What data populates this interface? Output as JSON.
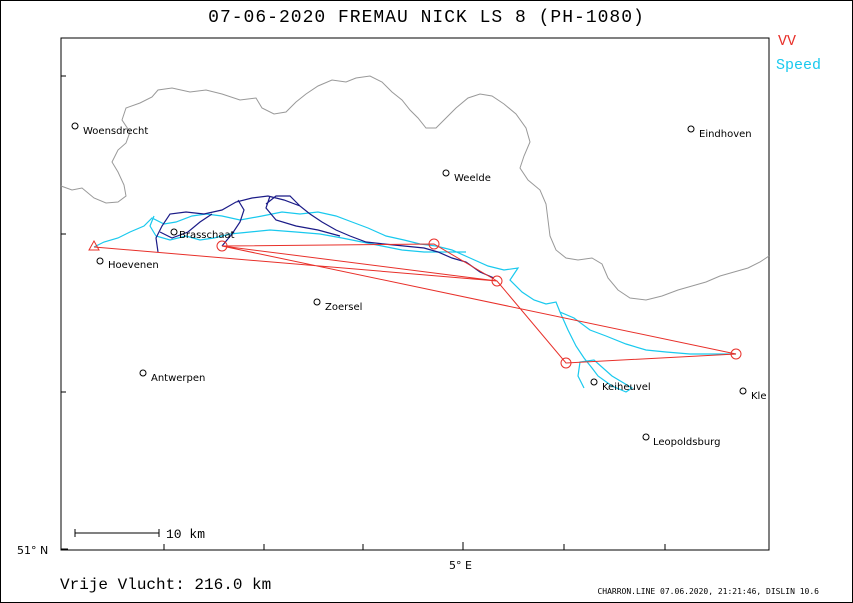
{
  "title": "07-06-2020    FREMAU NICK    LS 8 (PH-1080)",
  "legend": {
    "vv_label": "VV",
    "speed_label": "Speed",
    "vv_color": "#e8302a",
    "speed_color": "#19c9ee"
  },
  "towns": [
    {
      "name": "Woensdrecht",
      "key": "woensdrecht"
    },
    {
      "name": "Eindhoven",
      "key": "eindhoven"
    },
    {
      "name": "Weelde",
      "key": "weelde"
    },
    {
      "name": "Brasschaat",
      "key": "brasschaat"
    },
    {
      "name": "Hoevenen",
      "key": "hoevenen"
    },
    {
      "name": "Zoersel",
      "key": "zoersel"
    },
    {
      "name": "Antwerpen",
      "key": "antwerpen"
    },
    {
      "name": "Keiheuvel",
      "key": "keiheuvel"
    },
    {
      "name": "Kle",
      "key": "kle"
    },
    {
      "name": "Leopoldsburg",
      "key": "leopoldsburg"
    }
  ],
  "scale_label": "10 km",
  "lat_label": "51° N",
  "lon_label": "5° E",
  "distance": "Vrije Vlucht:  216.0 km",
  "footer": "CHARRON.LINE 07.06.2020, 21:21:46, DISLIN 10.6"
}
